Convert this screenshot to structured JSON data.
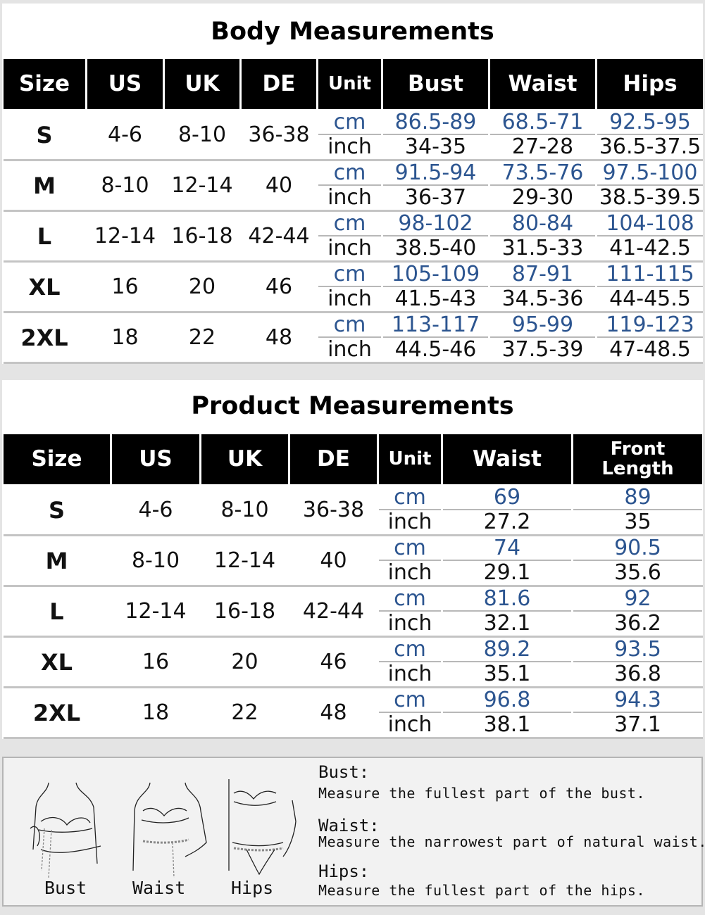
{
  "colors": {
    "header_bg": "#000000",
    "cm_text": "#2c5590",
    "divider": "#c4c4c4",
    "page_bg": "#e4e4e4"
  },
  "body_measurements": {
    "title": "Body Measurements",
    "headers": [
      "Size",
      "US",
      "UK",
      "DE",
      "Unit",
      "Bust",
      "Waist",
      "Hips"
    ],
    "rows": [
      {
        "size": "S",
        "us": "4-6",
        "uk": "8-10",
        "de": "36-38",
        "cm_unit": "cm",
        "inch_unit": "inch",
        "cm": [
          "86.5-89",
          "68.5-71",
          "92.5-95"
        ],
        "inch": [
          "34-35",
          "27-28",
          "36.5-37.5"
        ]
      },
      {
        "size": "M",
        "us": "8-10",
        "uk": "12-14",
        "de": "40",
        "cm_unit": "cm",
        "inch_unit": "inch",
        "cm": [
          "91.5-94",
          "73.5-76",
          "97.5-100"
        ],
        "inch": [
          "36-37",
          "29-30",
          "38.5-39.5"
        ]
      },
      {
        "size": "L",
        "us": "12-14",
        "uk": "16-18",
        "de": "42-44",
        "cm_unit": "cm",
        "inch_unit": "inch",
        "cm": [
          "98-102",
          "80-84",
          "104-108"
        ],
        "inch": [
          "38.5-40",
          "31.5-33",
          "41-42.5"
        ]
      },
      {
        "size": "XL",
        "us": "16",
        "uk": "20",
        "de": "46",
        "cm_unit": "cm",
        "inch_unit": "inch",
        "cm": [
          "105-109",
          "87-91",
          "111-115"
        ],
        "inch": [
          "41.5-43",
          "34.5-36",
          "44-45.5"
        ]
      },
      {
        "size": "2XL",
        "us": "18",
        "uk": "22",
        "de": "48",
        "cm_unit": "cm",
        "inch_unit": "inch",
        "cm": [
          "113-117",
          "95-99",
          "119-123"
        ],
        "inch": [
          "44.5-46",
          "37.5-39",
          "47-48.5"
        ]
      }
    ]
  },
  "product_measurements": {
    "title": "Product Measurements",
    "headers": [
      "Size",
      "US",
      "UK",
      "DE",
      "Unit",
      "Waist",
      "Front Length"
    ],
    "rows": [
      {
        "size": "S",
        "us": "4-6",
        "uk": "8-10",
        "de": "36-38",
        "cm_unit": "cm",
        "inch_unit": "inch",
        "cm": [
          "69",
          "89"
        ],
        "inch": [
          "27.2",
          "35"
        ]
      },
      {
        "size": "M",
        "us": "8-10",
        "uk": "12-14",
        "de": "40",
        "cm_unit": "cm",
        "inch_unit": "inch",
        "cm": [
          "74",
          "90.5"
        ],
        "inch": [
          "29.1",
          "35.6"
        ]
      },
      {
        "size": "L",
        "us": "12-14",
        "uk": "16-18",
        "de": "42-44",
        "cm_unit": "cm",
        "inch_unit": "inch",
        "cm": [
          "81.6",
          "92"
        ],
        "inch": [
          "32.1",
          "36.2"
        ]
      },
      {
        "size": "XL",
        "us": "16",
        "uk": "20",
        "de": "46",
        "cm_unit": "cm",
        "inch_unit": "inch",
        "cm": [
          "89.2",
          "93.5"
        ],
        "inch": [
          "35.1",
          "36.8"
        ]
      },
      {
        "size": "2XL",
        "us": "18",
        "uk": "22",
        "de": "48",
        "cm_unit": "cm",
        "inch_unit": "inch",
        "cm": [
          "96.8",
          "94.3"
        ],
        "inch": [
          "38.1",
          "37.1"
        ]
      }
    ]
  },
  "guide": {
    "figure_labels": [
      "Bust",
      "Waist",
      "Hips"
    ],
    "items": [
      {
        "heading": "Bust:",
        "text": "Measure the fullest part of the bust."
      },
      {
        "heading": "Waist:",
        "text": "Measure the narrowest part of natural waist."
      },
      {
        "heading": "Hips:",
        "text": "Measure the fullest part of the hips."
      }
    ]
  }
}
